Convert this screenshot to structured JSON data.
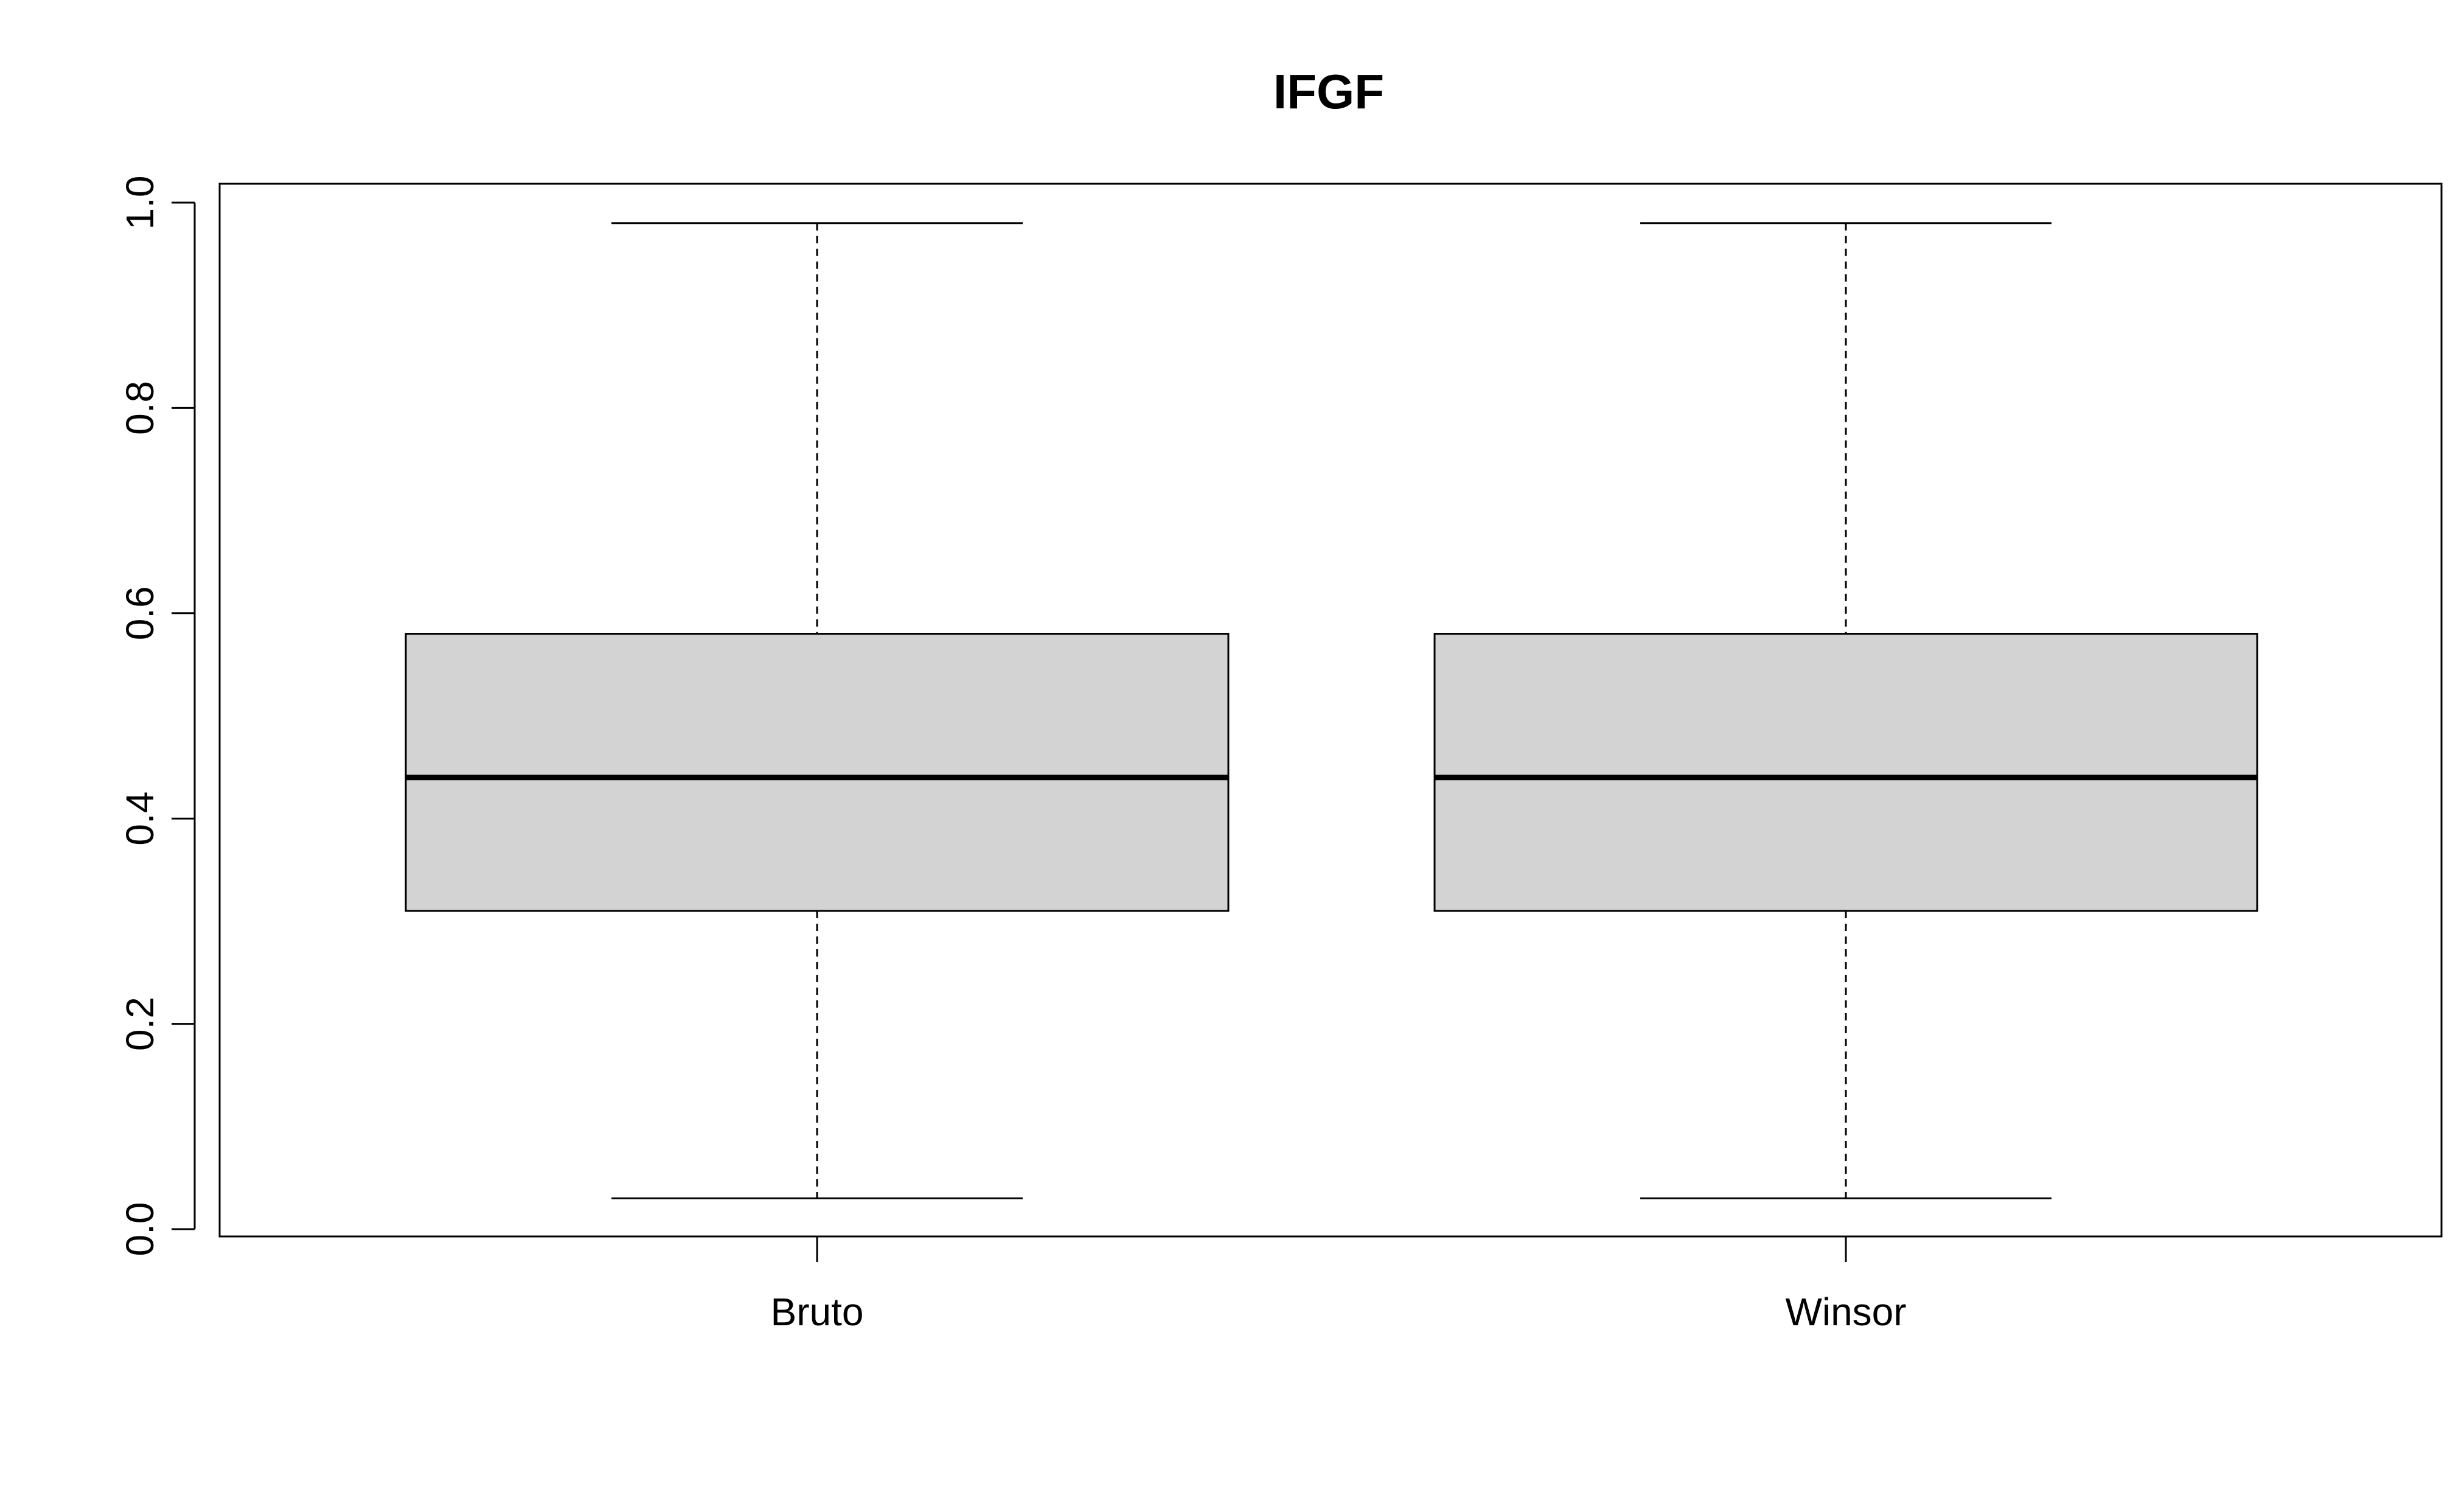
{
  "chart_data": {
    "type": "boxplot",
    "title": "IFGF",
    "xlabel": "",
    "ylabel": "",
    "categories": [
      "Bruto",
      "Winsor"
    ],
    "boxes": [
      {
        "name": "Bruto",
        "whisker_low": 0.03,
        "q1": 0.31,
        "median": 0.44,
        "q3": 0.58,
        "whisker_high": 0.98
      },
      {
        "name": "Winsor",
        "whisker_low": 0.03,
        "q1": 0.31,
        "median": 0.44,
        "q3": 0.58,
        "whisker_high": 0.98
      }
    ],
    "ylim": [
      0,
      1
    ],
    "yticks": [
      0.0,
      0.2,
      0.4,
      0.6,
      0.8,
      1.0
    ],
    "ytick_labels": [
      "0.0",
      "0.2",
      "0.4",
      "0.6",
      "0.8",
      "1.0"
    ],
    "grid": false,
    "colors": {
      "box_fill": "#d3d3d3",
      "lines": "#000000"
    }
  }
}
